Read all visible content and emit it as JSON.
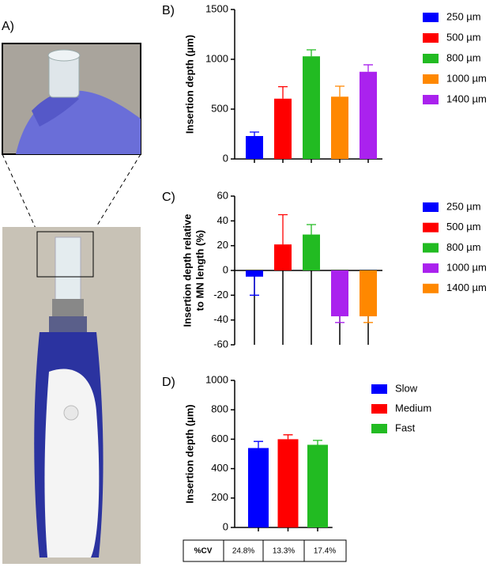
{
  "panel_labels": [
    "A)",
    "B)",
    "C)",
    "D)"
  ],
  "chart_data": [
    {
      "type": "bar",
      "ylabel": [
        "Insertion depth (µm)"
      ],
      "ylim": [
        0,
        1500
      ],
      "yticks": [
        0,
        500,
        1000,
        1500
      ],
      "series": [
        {
          "name": "250 µm",
          "color": "#0000ff",
          "values": [
            230
          ],
          "errors": [
            40
          ]
        },
        {
          "name": "500 µm",
          "color": "#ff0000",
          "values": [
            605
          ],
          "errors": [
            120
          ]
        },
        {
          "name": "800 µm",
          "color": "#22bb22",
          "values": [
            1030
          ],
          "errors": [
            65
          ]
        },
        {
          "name": "1000 µm",
          "color": "#ff8800",
          "values": [
            625
          ],
          "errors": [
            105
          ]
        },
        {
          "name": "1400 µm",
          "color": "#aa22ee",
          "values": [
            875
          ],
          "errors": [
            70
          ]
        }
      ]
    },
    {
      "type": "bar",
      "ylabel": [
        "Insertion depth relative",
        "to MN length (%)"
      ],
      "ylim": [
        -60,
        60
      ],
      "yticks": [
        -60,
        -40,
        -20,
        0,
        20,
        40,
        60
      ],
      "series": [
        {
          "name": "250 µm",
          "color": "#0000ff",
          "values": [
            -5
          ],
          "errors": [
            15
          ]
        },
        {
          "name": "500 µm",
          "color": "#ff0000",
          "values": [
            21
          ],
          "errors": [
            24
          ]
        },
        {
          "name": "800 µm",
          "color": "#22bb22",
          "values": [
            29
          ],
          "errors": [
            8
          ]
        },
        {
          "name": "1000 µm",
          "color": "#aa22ee",
          "values": [
            -37
          ],
          "errors": [
            5
          ]
        },
        {
          "name": "1400 µm",
          "color": "#ff8800",
          "values": [
            -37
          ],
          "errors": [
            5
          ]
        }
      ]
    },
    {
      "type": "bar",
      "ylabel": [
        "Insertion depth (µm)"
      ],
      "ylim": [
        0,
        1000
      ],
      "yticks": [
        0,
        200,
        400,
        600,
        800,
        1000
      ],
      "series": [
        {
          "name": "Slow",
          "color": "#0000ff",
          "values": [
            540
          ],
          "errors": [
            45
          ]
        },
        {
          "name": "Medium",
          "color": "#ff0000",
          "values": [
            600
          ],
          "errors": [
            30
          ]
        },
        {
          "name": "Fast",
          "color": "#22bb22",
          "values": [
            562
          ],
          "errors": [
            30
          ]
        }
      ]
    }
  ],
  "cv_table": {
    "header": "%CV",
    "cells": [
      "24.8%",
      "13.3%",
      "17.4%"
    ]
  }
}
